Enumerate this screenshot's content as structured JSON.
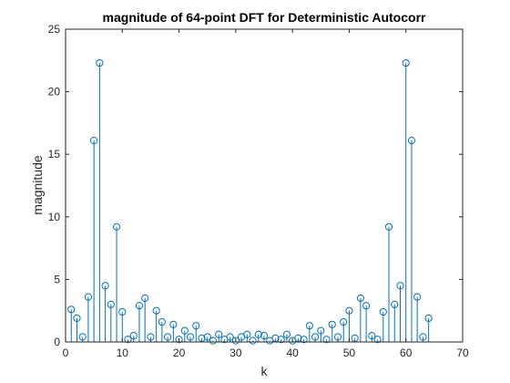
{
  "chart_data": {
    "type": "stem",
    "title": "magnitude of 64-point DFT for Deterministic Autocorr",
    "xlabel": "k",
    "ylabel": "magnitude",
    "xlim": [
      0,
      70
    ],
    "ylim": [
      0,
      25
    ],
    "xticks": [
      "0",
      "10",
      "20",
      "30",
      "40",
      "50",
      "60",
      "70"
    ],
    "yticks": [
      "0",
      "5",
      "10",
      "15",
      "20",
      "25"
    ],
    "grid": false,
    "legend": "none",
    "colors": {
      "series": "#0072BD",
      "axes": "#262626",
      "background": "#ffffff"
    },
    "x": [
      1,
      2,
      3,
      4,
      5,
      6,
      7,
      8,
      9,
      10,
      11,
      12,
      13,
      14,
      15,
      16,
      17,
      18,
      19,
      20,
      21,
      22,
      23,
      24,
      25,
      26,
      27,
      28,
      29,
      30,
      31,
      32,
      33,
      34,
      35,
      36,
      37,
      38,
      39,
      40,
      41,
      42,
      43,
      44,
      45,
      46,
      47,
      48,
      49,
      50,
      51,
      52,
      53,
      54,
      55,
      56,
      57,
      58,
      59,
      60,
      61,
      62,
      63,
      64
    ],
    "y": [
      2.6,
      1.9,
      0.4,
      3.6,
      16.1,
      22.3,
      4.5,
      3.0,
      9.2,
      2.4,
      0.2,
      0.5,
      2.9,
      3.5,
      0.4,
      2.5,
      1.6,
      0.4,
      1.4,
      0.2,
      0.9,
      0.4,
      1.3,
      0.3,
      0.4,
      0.1,
      0.6,
      0.2,
      0.4,
      0.1,
      0.4,
      0.6,
      0.1,
      0.6,
      0.5,
      0.1,
      0.3,
      0.2,
      0.6,
      0.1,
      0.3,
      0.2,
      1.3,
      0.4,
      0.9,
      0.2,
      1.4,
      0.4,
      1.6,
      2.5,
      0.3,
      3.5,
      2.9,
      0.5,
      0.2,
      2.4,
      9.2,
      3.0,
      4.5,
      22.3,
      16.1,
      3.6,
      0.4,
      1.9
    ]
  }
}
